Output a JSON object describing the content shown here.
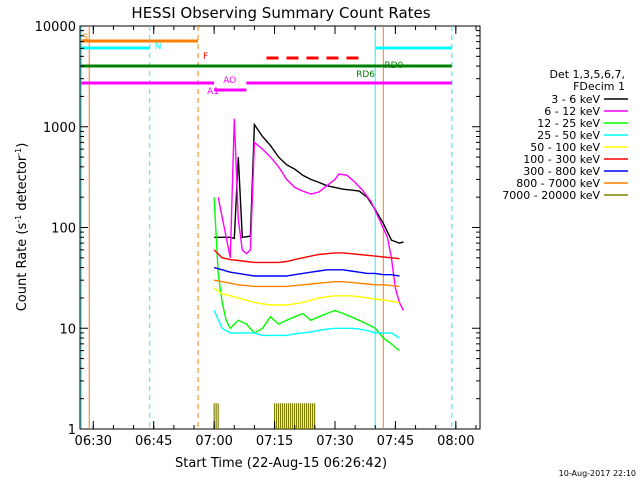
{
  "chart_data": {
    "type": "line",
    "title": "HESSI Observing Summary Count Rates",
    "xlabel": "Start Time (22-Aug-15 06:26:42)",
    "ylabel": "Count Rate (s⁻¹ detector⁻¹)",
    "ylabel_main": "Count Rate (s",
    "ylabel_sup1": "-1",
    "ylabel_mid": " detector",
    "ylabel_sup2": "-1",
    "ylabel_end": ")",
    "yscale": "log",
    "xlim": [
      "06:26:42",
      "08:06"
    ],
    "ylim": [
      1,
      10000
    ],
    "x_ticks": [
      "06:30",
      "06:45",
      "07:00",
      "07:15",
      "07:30",
      "07:45",
      "08:00"
    ],
    "y_ticks": [
      "1",
      "10",
      "100",
      "1000",
      "10000"
    ],
    "legend_header": [
      "Det 1,3,5,6,7,",
      "FDecim 1"
    ],
    "legend_position": "right",
    "timestamp": "10-Aug-2017 22:10",
    "annotations": [
      {
        "label": "S",
        "color": "#ff8000"
      },
      {
        "label": "N",
        "color": "#00ffff"
      },
      {
        "label": "F",
        "color": "#ff0000"
      },
      {
        "label": "AO",
        "color": "#ff00ff"
      },
      {
        "label": "A1",
        "color": "#ff00ff"
      },
      {
        "label": "RD0",
        "color": "#008000"
      },
      {
        "label": "RD6",
        "color": "#008000"
      }
    ],
    "series": [
      {
        "name": "3 - 6 keV",
        "color": "#000000",
        "points": [
          [
            "07:00",
            80
          ],
          [
            "07:04",
            80
          ],
          [
            "07:05",
            78
          ],
          [
            "07:06",
            500
          ],
          [
            "07:07",
            80
          ],
          [
            "07:09",
            82
          ],
          [
            "07:10",
            1050
          ],
          [
            "07:12",
            800
          ],
          [
            "07:14",
            650
          ],
          [
            "07:16",
            500
          ],
          [
            "07:18",
            420
          ],
          [
            "07:20",
            380
          ],
          [
            "07:22",
            330
          ],
          [
            "07:24",
            300
          ],
          [
            "07:26",
            280
          ],
          [
            "07:28",
            260
          ],
          [
            "07:30",
            250
          ],
          [
            "07:32",
            240
          ],
          [
            "07:34",
            235
          ],
          [
            "07:36",
            230
          ],
          [
            "07:38",
            200
          ],
          [
            "07:40",
            150
          ],
          [
            "07:42",
            110
          ],
          [
            "07:44",
            75
          ],
          [
            "07:46",
            70
          ],
          [
            "07:47",
            72
          ]
        ]
      },
      {
        "name": "6 - 12 keV",
        "color": "#ff00ff",
        "points": [
          [
            "07:01",
            200
          ],
          [
            "07:03",
            80
          ],
          [
            "07:04",
            50
          ],
          [
            "07:05",
            1200
          ],
          [
            "07:06",
            120
          ],
          [
            "07:07",
            60
          ],
          [
            "07:08",
            55
          ],
          [
            "07:09",
            60
          ],
          [
            "07:10",
            700
          ],
          [
            "07:12",
            600
          ],
          [
            "07:14",
            500
          ],
          [
            "07:16",
            400
          ],
          [
            "07:18",
            300
          ],
          [
            "07:20",
            250
          ],
          [
            "07:22",
            230
          ],
          [
            "07:24",
            215
          ],
          [
            "07:26",
            225
          ],
          [
            "07:28",
            260
          ],
          [
            "07:30",
            300
          ],
          [
            "07:31",
            340
          ],
          [
            "07:33",
            330
          ],
          [
            "07:35",
            280
          ],
          [
            "07:37",
            230
          ],
          [
            "07:39",
            180
          ],
          [
            "07:41",
            120
          ],
          [
            "07:43",
            80
          ],
          [
            "07:44",
            50
          ],
          [
            "07:45",
            25
          ],
          [
            "07:46",
            18
          ],
          [
            "07:47",
            15
          ]
        ]
      },
      {
        "name": "12 - 25 keV",
        "color": "#00ff00",
        "points": [
          [
            "07:00",
            200
          ],
          [
            "07:01",
            35
          ],
          [
            "07:02",
            18
          ],
          [
            "07:03",
            12
          ],
          [
            "07:04",
            10
          ],
          [
            "07:06",
            12
          ],
          [
            "07:08",
            11
          ],
          [
            "07:10",
            9
          ],
          [
            "07:12",
            10
          ],
          [
            "07:14",
            13
          ],
          [
            "07:16",
            11
          ],
          [
            "07:18",
            12
          ],
          [
            "07:20",
            13
          ],
          [
            "07:22",
            14
          ],
          [
            "07:24",
            12
          ],
          [
            "07:26",
            13
          ],
          [
            "07:28",
            14
          ],
          [
            "07:30",
            15
          ],
          [
            "07:32",
            14
          ],
          [
            "07:34",
            13
          ],
          [
            "07:36",
            12
          ],
          [
            "07:38",
            11
          ],
          [
            "07:40",
            10
          ],
          [
            "07:42",
            8
          ],
          [
            "07:44",
            7
          ],
          [
            "07:46",
            6
          ]
        ]
      },
      {
        "name": "25 - 50 keV",
        "color": "#00ffff",
        "points": [
          [
            "07:00",
            15
          ],
          [
            "07:02",
            10
          ],
          [
            "07:04",
            9
          ],
          [
            "07:06",
            9
          ],
          [
            "07:08",
            9
          ],
          [
            "07:10",
            9
          ],
          [
            "07:12",
            8.5
          ],
          [
            "07:14",
            8.5
          ],
          [
            "07:16",
            8.5
          ],
          [
            "07:18",
            8.5
          ],
          [
            "07:20",
            8.8
          ],
          [
            "07:22",
            9
          ],
          [
            "07:24",
            9.2
          ],
          [
            "07:26",
            9.5
          ],
          [
            "07:28",
            9.8
          ],
          [
            "07:30",
            10
          ],
          [
            "07:32",
            10
          ],
          [
            "07:34",
            10
          ],
          [
            "07:36",
            9.8
          ],
          [
            "07:38",
            9.5
          ],
          [
            "07:40",
            9
          ],
          [
            "07:42",
            9
          ],
          [
            "07:44",
            9
          ],
          [
            "07:46",
            8
          ]
        ]
      },
      {
        "name": "50 - 100 keV",
        "color": "#ffff00",
        "points": [
          [
            "07:00",
            25
          ],
          [
            "07:02",
            22
          ],
          [
            "07:04",
            21
          ],
          [
            "07:06",
            20
          ],
          [
            "07:08",
            19
          ],
          [
            "07:10",
            18
          ],
          [
            "07:12",
            17.5
          ],
          [
            "07:14",
            17
          ],
          [
            "07:16",
            17
          ],
          [
            "07:18",
            17
          ],
          [
            "07:20",
            17.5
          ],
          [
            "07:22",
            18
          ],
          [
            "07:24",
            19
          ],
          [
            "07:26",
            20
          ],
          [
            "07:28",
            20.5
          ],
          [
            "07:30",
            21
          ],
          [
            "07:32",
            21
          ],
          [
            "07:34",
            21
          ],
          [
            "07:36",
            20.5
          ],
          [
            "07:38",
            20
          ],
          [
            "07:40",
            19.5
          ],
          [
            "07:42",
            19
          ],
          [
            "07:44",
            18.5
          ],
          [
            "07:46",
            18
          ]
        ]
      },
      {
        "name": "100 - 300 keV",
        "color": "#ff0000",
        "points": [
          [
            "07:00",
            60
          ],
          [
            "07:02",
            50
          ],
          [
            "07:04",
            48
          ],
          [
            "07:06",
            47
          ],
          [
            "07:08",
            46
          ],
          [
            "07:10",
            45
          ],
          [
            "07:12",
            45
          ],
          [
            "07:14",
            45
          ],
          [
            "07:16",
            45
          ],
          [
            "07:18",
            46
          ],
          [
            "07:20",
            48
          ],
          [
            "07:22",
            50
          ],
          [
            "07:24",
            52
          ],
          [
            "07:26",
            54
          ],
          [
            "07:28",
            55
          ],
          [
            "07:30",
            56
          ],
          [
            "07:32",
            56
          ],
          [
            "07:34",
            55
          ],
          [
            "07:36",
            54
          ],
          [
            "07:38",
            53
          ],
          [
            "07:40",
            52
          ],
          [
            "07:42",
            51
          ],
          [
            "07:44",
            50
          ],
          [
            "07:46",
            49
          ]
        ]
      },
      {
        "name": "300 - 800 keV",
        "color": "#0000ff",
        "points": [
          [
            "07:00",
            40
          ],
          [
            "07:02",
            38
          ],
          [
            "07:04",
            36
          ],
          [
            "07:06",
            35
          ],
          [
            "07:08",
            34
          ],
          [
            "07:10",
            33
          ],
          [
            "07:12",
            33
          ],
          [
            "07:14",
            33
          ],
          [
            "07:16",
            33
          ],
          [
            "07:18",
            33
          ],
          [
            "07:20",
            34
          ],
          [
            "07:22",
            35
          ],
          [
            "07:24",
            36
          ],
          [
            "07:26",
            37
          ],
          [
            "07:28",
            38
          ],
          [
            "07:30",
            38
          ],
          [
            "07:32",
            38
          ],
          [
            "07:34",
            37
          ],
          [
            "07:36",
            36
          ],
          [
            "07:38",
            35
          ],
          [
            "07:40",
            35
          ],
          [
            "07:42",
            34
          ],
          [
            "07:44",
            34
          ],
          [
            "07:46",
            33
          ]
        ]
      },
      {
        "name": "800 - 7000 keV",
        "color": "#ff8000",
        "points": [
          [
            "07:00",
            30
          ],
          [
            "07:02",
            29
          ],
          [
            "07:04",
            28
          ],
          [
            "07:06",
            27
          ],
          [
            "07:08",
            26.5
          ],
          [
            "07:10",
            26
          ],
          [
            "07:12",
            26
          ],
          [
            "07:14",
            26
          ],
          [
            "07:16",
            26
          ],
          [
            "07:18",
            26
          ],
          [
            "07:20",
            26.5
          ],
          [
            "07:22",
            27
          ],
          [
            "07:24",
            27.5
          ],
          [
            "07:26",
            28
          ],
          [
            "07:28",
            28.5
          ],
          [
            "07:30",
            29
          ],
          [
            "07:32",
            29
          ],
          [
            "07:34",
            28.5
          ],
          [
            "07:36",
            28
          ],
          [
            "07:38",
            27.5
          ],
          [
            "07:40",
            27
          ],
          [
            "07:42",
            27
          ],
          [
            "07:44",
            26.5
          ],
          [
            "07:46",
            26
          ]
        ]
      },
      {
        "name": "7000 - 20000 keV",
        "color": "#808000",
        "points": []
      }
    ]
  }
}
